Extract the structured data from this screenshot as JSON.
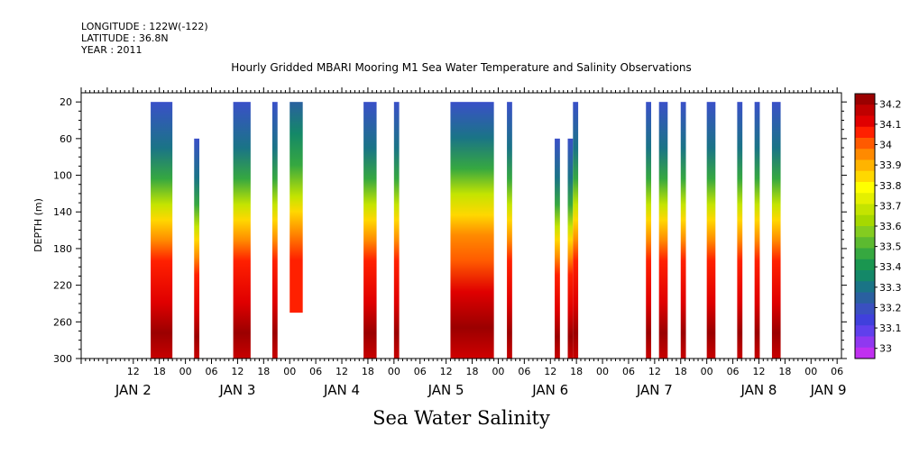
{
  "meta": {
    "longitude": "LONGITUDE : 122W(-122)",
    "latitude": "LATITUDE : 36.8N",
    "year": "YEAR : 2011"
  },
  "title": "Hourly Gridded MBARI Mooring M1 Sea Water Temperature and Salinity Observations",
  "subtitle": "Sea Water Salinity",
  "chart_data": {
    "type": "heatmap",
    "title": "Hourly Gridded MBARI Mooring M1 Sea Water Temperature and Salinity Observations",
    "subtitle": "Sea Water Salinity",
    "xlabel": "",
    "ylabel": "DEPTH (m)",
    "x_range_hours": [
      0,
      168
    ],
    "x_origin": "JAN 2 00",
    "ylim": [
      300,
      10
    ],
    "y_ticks": [
      20,
      60,
      100,
      140,
      180,
      220,
      260,
      300
    ],
    "x_hour_ticks": [
      {
        "h": 12,
        "label": "12"
      },
      {
        "h": 18,
        "label": "18"
      },
      {
        "h": 24,
        "label": "00"
      },
      {
        "h": 30,
        "label": "06"
      },
      {
        "h": 36,
        "label": "12"
      },
      {
        "h": 42,
        "label": "18"
      },
      {
        "h": 48,
        "label": "00"
      },
      {
        "h": 54,
        "label": "06"
      },
      {
        "h": 60,
        "label": "12"
      },
      {
        "h": 66,
        "label": "18"
      },
      {
        "h": 72,
        "label": "00"
      },
      {
        "h": 78,
        "label": "06"
      },
      {
        "h": 84,
        "label": "12"
      },
      {
        "h": 90,
        "label": "18"
      },
      {
        "h": 96,
        "label": "00"
      },
      {
        "h": 102,
        "label": "06"
      },
      {
        "h": 108,
        "label": "12"
      },
      {
        "h": 114,
        "label": "18"
      },
      {
        "h": 120,
        "label": "00"
      },
      {
        "h": 126,
        "label": "06"
      },
      {
        "h": 132,
        "label": "12"
      },
      {
        "h": 138,
        "label": "18"
      },
      {
        "h": 144,
        "label": "00"
      },
      {
        "h": 150,
        "label": "06"
      },
      {
        "h": 156,
        "label": "12"
      },
      {
        "h": 162,
        "label": "18"
      },
      {
        "h": 168,
        "label": "00"
      },
      {
        "h": 174,
        "label": "06"
      }
    ],
    "day_labels": [
      {
        "h": 12,
        "label": "JAN  2"
      },
      {
        "h": 36,
        "label": "JAN  3"
      },
      {
        "h": 60,
        "label": "JAN  4"
      },
      {
        "h": 84,
        "label": "JAN  5"
      },
      {
        "h": 108,
        "label": "JAN  6"
      },
      {
        "h": 132,
        "label": "JAN  7"
      },
      {
        "h": 156,
        "label": "JAN  8"
      },
      {
        "h": 172,
        "label": "JAN  9"
      }
    ],
    "colorbar": {
      "labels": [
        "34.2",
        "34.1",
        "34",
        "33.9",
        "33.8",
        "33.7",
        "33.6",
        "33.5",
        "33.4",
        "33.3",
        "33.2",
        "33.1",
        "33"
      ],
      "colors": [
        "#9b0000",
        "#c00000",
        "#e00000",
        "#ff2000",
        "#ff5a00",
        "#ff8a00",
        "#ffb400",
        "#ffd800",
        "#ffff00",
        "#e4f000",
        "#c4e400",
        "#a6d800",
        "#84cc20",
        "#5cba30",
        "#36a840",
        "#1a9650",
        "#148868",
        "#1a7486",
        "#2a60a0",
        "#3a50c0",
        "#4040dc",
        "#6040ec",
        "#9038f0",
        "#c030f0"
      ]
    },
    "columns": [
      {
        "t0": 16,
        "t1": 21,
        "top": 20,
        "bottom": 300,
        "profile": "deep"
      },
      {
        "t0": 26,
        "t1": 27.2,
        "top": 60,
        "bottom": 300,
        "profile": "deep"
      },
      {
        "t0": 35,
        "t1": 39,
        "top": 20,
        "bottom": 300,
        "profile": "deep"
      },
      {
        "t0": 44,
        "t1": 45.2,
        "top": 20,
        "bottom": 300,
        "profile": "deep"
      },
      {
        "t0": 48,
        "t1": 51,
        "top": 20,
        "bottom": 250,
        "profile": "mid"
      },
      {
        "t0": 65,
        "t1": 68,
        "top": 20,
        "bottom": 300,
        "profile": "deep"
      },
      {
        "t0": 72,
        "t1": 73.2,
        "top": 20,
        "bottom": 300,
        "profile": "deep"
      },
      {
        "t0": 85,
        "t1": 95,
        "top": 20,
        "bottom": 300,
        "profile": "wide"
      },
      {
        "t0": 98,
        "t1": 99.2,
        "top": 20,
        "bottom": 300,
        "profile": "deep"
      },
      {
        "t0": 109,
        "t1": 110.2,
        "top": 60,
        "bottom": 300,
        "profile": "deep"
      },
      {
        "t0": 112,
        "t1": 113.2,
        "top": 60,
        "bottom": 300,
        "profile": "deep"
      },
      {
        "t0": 113.2,
        "t1": 114.4,
        "top": 20,
        "bottom": 300,
        "profile": "deep"
      },
      {
        "t0": 130,
        "t1": 131.2,
        "top": 20,
        "bottom": 300,
        "profile": "deep"
      },
      {
        "t0": 133,
        "t1": 135,
        "top": 20,
        "bottom": 300,
        "profile": "deep"
      },
      {
        "t0": 138,
        "t1": 139.2,
        "top": 20,
        "bottom": 300,
        "profile": "deep"
      },
      {
        "t0": 144,
        "t1": 146,
        "top": 20,
        "bottom": 300,
        "profile": "deep"
      },
      {
        "t0": 151,
        "t1": 152.2,
        "top": 20,
        "bottom": 300,
        "profile": "deep"
      },
      {
        "t0": 155,
        "t1": 156.2,
        "top": 20,
        "bottom": 300,
        "profile": "deep"
      },
      {
        "t0": 159,
        "t1": 161,
        "top": 20,
        "bottom": 300,
        "profile": "deep"
      }
    ]
  }
}
